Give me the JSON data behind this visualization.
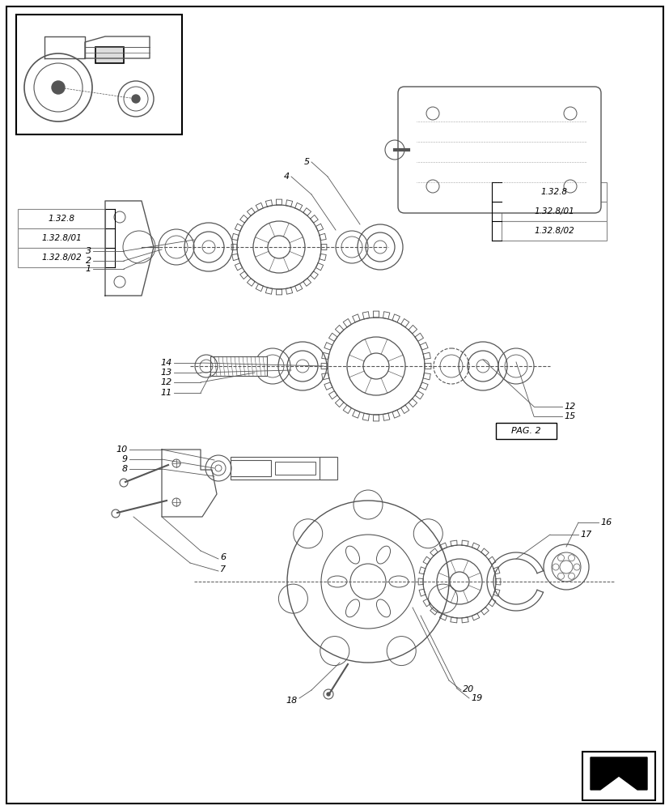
{
  "background_color": "#ffffff",
  "border_color": "#000000",
  "line_color": "#555555",
  "text_color": "#000000",
  "fig_width": 8.28,
  "fig_height": 10.0,
  "dpi": 100,
  "left_box_labels": [
    "1.32.8",
    "1.32.8/01",
    "1.32.8/02"
  ],
  "right_box_labels": [
    "1.32.8",
    "1.32.8/01",
    "1.32.8/02"
  ],
  "pag_label": "PAG. 2"
}
